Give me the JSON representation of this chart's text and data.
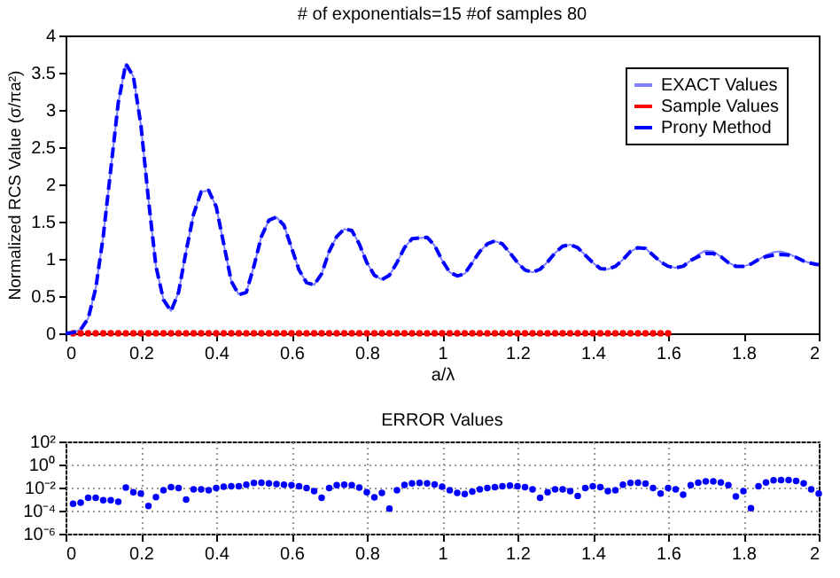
{
  "chart_data": [
    {
      "type": "line",
      "title": "# of exponentials=15 #of samples 80",
      "xlabel": "a/λ",
      "ylabel": "Normalized RCS Value (σ/πa²)",
      "xlim": [
        0,
        2
      ],
      "xticks": [
        0,
        0.2,
        0.4,
        0.6,
        0.8,
        1,
        1.2,
        1.4,
        1.6,
        1.8,
        2
      ],
      "ylim": [
        0,
        4
      ],
      "yticks": [
        0,
        0.5,
        1,
        1.5,
        2,
        2.5,
        3,
        3.5,
        4
      ],
      "grid": false,
      "legend": "top right",
      "x": [
        0,
        0.02,
        0.04,
        0.06,
        0.08,
        0.1,
        0.12,
        0.14,
        0.16,
        0.18,
        0.2,
        0.22,
        0.24,
        0.26,
        0.28,
        0.3,
        0.32,
        0.34,
        0.36,
        0.38,
        0.4,
        0.42,
        0.44,
        0.46,
        0.48,
        0.5,
        0.52,
        0.54,
        0.56,
        0.58,
        0.6,
        0.62,
        0.64,
        0.66,
        0.68,
        0.7,
        0.72,
        0.74,
        0.76,
        0.78,
        0.8,
        0.82,
        0.84,
        0.86,
        0.88,
        0.9,
        0.92,
        0.94,
        0.96,
        0.98,
        1,
        1.02,
        1.04,
        1.06,
        1.08,
        1.1,
        1.12,
        1.14,
        1.16,
        1.18,
        1.2,
        1.22,
        1.24,
        1.26,
        1.28,
        1.3,
        1.32,
        1.34,
        1.36,
        1.38,
        1.4,
        1.42,
        1.44,
        1.46,
        1.48,
        1.5,
        1.52,
        1.54,
        1.56,
        1.58,
        1.6,
        1.62,
        1.64,
        1.66,
        1.68,
        1.7,
        1.72,
        1.74,
        1.76,
        1.78,
        1.8,
        1.82,
        1.84,
        1.86,
        1.88,
        1.9,
        1.92,
        1.94,
        1.96,
        1.98,
        2
      ],
      "series": [
        {
          "name": "EXACT Values",
          "type": "line",
          "line_style": "solid",
          "marker": "none",
          "color": "#8080ff",
          "values": [
            0,
            0.01,
            0.05,
            0.2,
            0.6,
            1.3,
            2.2,
            3.1,
            3.62,
            3.45,
            2.8,
            1.8,
            0.9,
            0.45,
            0.3,
            0.55,
            1.1,
            1.6,
            1.9,
            1.92,
            1.7,
            1.2,
            0.7,
            0.52,
            0.55,
            0.9,
            1.3,
            1.52,
            1.56,
            1.45,
            1.15,
            0.85,
            0.68,
            0.65,
            0.8,
            1.1,
            1.3,
            1.4,
            1.38,
            1.2,
            0.95,
            0.78,
            0.72,
            0.78,
            0.95,
            1.15,
            1.27,
            1.28,
            1.29,
            1.18,
            0.98,
            0.82,
            0.77,
            0.8,
            0.95,
            1.1,
            1.2,
            1.24,
            1.2,
            1.08,
            0.95,
            0.85,
            0.82,
            0.86,
            0.96,
            1.08,
            1.17,
            1.19,
            1.15,
            1.05,
            0.95,
            0.87,
            0.86,
            0.9,
            0.99,
            1.1,
            1.15,
            1.14,
            1.05,
            0.96,
            0.9,
            0.88,
            0.9,
            0.98,
            1.06,
            1.11,
            1.1,
            1.03,
            0.95,
            0.9,
            0.9,
            0.93,
            0.99,
            1.05,
            1.09,
            1.1,
            1.07,
            1.02,
            0.97,
            0.94,
            0.92
          ]
        },
        {
          "name": "Sample Values",
          "type": "scatter",
          "marker": "circle",
          "color": "#ff0000",
          "x": [
            0.02,
            0.04,
            0.06,
            0.08,
            0.1,
            0.12,
            0.14,
            0.16,
            0.18,
            0.2,
            0.22,
            0.24,
            0.26,
            0.28,
            0.3,
            0.32,
            0.34,
            0.36,
            0.38,
            0.4,
            0.42,
            0.44,
            0.46,
            0.48,
            0.5,
            0.52,
            0.54,
            0.56,
            0.58,
            0.6,
            0.62,
            0.64,
            0.66,
            0.68,
            0.7,
            0.72,
            0.74,
            0.76,
            0.78,
            0.8,
            0.82,
            0.84,
            0.86,
            0.88,
            0.9,
            0.92,
            0.94,
            0.96,
            0.98,
            1,
            1.02,
            1.04,
            1.06,
            1.08,
            1.1,
            1.12,
            1.14,
            1.16,
            1.18,
            1.2,
            1.22,
            1.24,
            1.26,
            1.28,
            1.3,
            1.32,
            1.34,
            1.36,
            1.38,
            1.4,
            1.42,
            1.44,
            1.46,
            1.48,
            1.5,
            1.52,
            1.54,
            1.56,
            1.58,
            1.6
          ],
          "values": [
            0,
            0,
            0,
            0,
            0,
            0,
            0,
            0,
            0,
            0,
            0,
            0,
            0,
            0,
            0,
            0,
            0,
            0,
            0,
            0,
            0,
            0,
            0,
            0,
            0,
            0,
            0,
            0,
            0,
            0,
            0,
            0,
            0,
            0,
            0,
            0,
            0,
            0,
            0,
            0,
            0,
            0,
            0,
            0,
            0,
            0,
            0,
            0,
            0,
            0,
            0,
            0,
            0,
            0,
            0,
            0,
            0,
            0,
            0,
            0,
            0,
            0,
            0,
            0,
            0,
            0,
            0,
            0,
            0,
            0,
            0,
            0,
            0,
            0,
            0,
            0,
            0,
            0,
            0,
            0
          ]
        },
        {
          "name": "Prony Method",
          "type": "line",
          "line_style": "dashed",
          "marker": "none",
          "color": "#0000ff",
          "values": [
            0,
            0.01,
            0.05,
            0.2,
            0.6,
            1.3,
            2.2,
            3.1,
            3.62,
            3.45,
            2.8,
            1.8,
            0.9,
            0.45,
            0.3,
            0.55,
            1.1,
            1.6,
            1.9,
            1.92,
            1.7,
            1.2,
            0.7,
            0.52,
            0.55,
            0.9,
            1.3,
            1.52,
            1.56,
            1.45,
            1.15,
            0.85,
            0.68,
            0.65,
            0.8,
            1.1,
            1.3,
            1.4,
            1.38,
            1.2,
            0.95,
            0.78,
            0.72,
            0.78,
            0.95,
            1.15,
            1.27,
            1.28,
            1.29,
            1.18,
            0.98,
            0.82,
            0.77,
            0.8,
            0.95,
            1.1,
            1.2,
            1.24,
            1.2,
            1.08,
            0.95,
            0.85,
            0.82,
            0.86,
            0.96,
            1.08,
            1.17,
            1.19,
            1.15,
            1.05,
            0.95,
            0.87,
            0.86,
            0.9,
            0.99,
            1.1,
            1.15,
            1.14,
            1.05,
            0.96,
            0.9,
            0.88,
            0.9,
            0.98,
            1.03,
            1.07,
            1.07,
            1.03,
            0.95,
            0.9,
            0.9,
            0.93,
            0.99,
            1.03,
            1.05,
            1.06,
            1.05,
            1.02,
            0.97,
            0.94,
            0.92
          ]
        }
      ]
    },
    {
      "type": "scatter",
      "title": "ERROR Values",
      "log": "y",
      "grid": true,
      "marker": "circle",
      "xlim": [
        0,
        2
      ],
      "xticks": [
        0,
        0.2,
        0.4,
        0.6,
        0.8,
        1,
        1.2,
        1.4,
        1.6,
        1.8,
        2
      ],
      "ylim": [
        1e-06,
        100
      ],
      "yticks": [
        {
          "value": 1e-06,
          "label": "10⁻⁶"
        },
        {
          "value": 0.0001,
          "label": "10⁻⁴"
        },
        {
          "value": 0.01,
          "label": "10⁻²"
        },
        {
          "value": 1,
          "label": "10⁰"
        },
        {
          "value": 100,
          "label": "10²"
        }
      ],
      "x": [
        0.02,
        0.04,
        0.06,
        0.08,
        0.1,
        0.12,
        0.14,
        0.16,
        0.18,
        0.2,
        0.22,
        0.24,
        0.26,
        0.28,
        0.3,
        0.32,
        0.34,
        0.36,
        0.38,
        0.4,
        0.42,
        0.44,
        0.46,
        0.48,
        0.5,
        0.52,
        0.54,
        0.56,
        0.58,
        0.6,
        0.62,
        0.64,
        0.66,
        0.68,
        0.7,
        0.72,
        0.74,
        0.76,
        0.78,
        0.8,
        0.82,
        0.84,
        0.86,
        0.88,
        0.9,
        0.92,
        0.94,
        0.96,
        0.98,
        1,
        1.02,
        1.04,
        1.06,
        1.08,
        1.1,
        1.12,
        1.14,
        1.16,
        1.18,
        1.2,
        1.22,
        1.24,
        1.26,
        1.28,
        1.3,
        1.32,
        1.34,
        1.36,
        1.38,
        1.4,
        1.42,
        1.44,
        1.46,
        1.48,
        1.5,
        1.52,
        1.54,
        1.56,
        1.58,
        1.6,
        1.62,
        1.64,
        1.66,
        1.68,
        1.7,
        1.72,
        1.74,
        1.76,
        1.78,
        1.8,
        1.82,
        1.84,
        1.86,
        1.88,
        1.9,
        1.92,
        1.94,
        1.96,
        1.98,
        2
      ],
      "series": [
        {
          "color": "#0000ff",
          "values": [
            0.0004,
            0.0005,
            0.0013,
            0.0013,
            0.0008,
            0.0008,
            0.0006,
            0.01,
            0.004,
            0.003,
            0.00025,
            0.0015,
            0.006,
            0.011,
            0.009,
            0.0009,
            0.007,
            0.007,
            0.006,
            0.009,
            0.012,
            0.013,
            0.013,
            0.018,
            0.025,
            0.026,
            0.023,
            0.02,
            0.018,
            0.016,
            0.013,
            0.009,
            0.005,
            0.0013,
            0.009,
            0.016,
            0.018,
            0.016,
            0.01,
            0.004,
            0.0014,
            0.0035,
            0.00015,
            0.006,
            0.017,
            0.023,
            0.025,
            0.023,
            0.019,
            0.012,
            0.006,
            0.0035,
            0.0028,
            0.0045,
            0.007,
            0.009,
            0.011,
            0.013,
            0.015,
            0.013,
            0.011,
            0.007,
            0.0013,
            0.004,
            0.007,
            0.007,
            0.005,
            0.0019,
            0.009,
            0.013,
            0.011,
            0.005,
            0.006,
            0.018,
            0.025,
            0.026,
            0.022,
            0.009,
            0.003,
            0.009,
            0.007,
            0.0024,
            0.016,
            0.026,
            0.034,
            0.034,
            0.028,
            0.016,
            0.0017,
            0.005,
            0.00016,
            0.013,
            0.028,
            0.043,
            0.045,
            0.045,
            0.037,
            0.023,
            0.007,
            0.003
          ]
        }
      ]
    }
  ]
}
